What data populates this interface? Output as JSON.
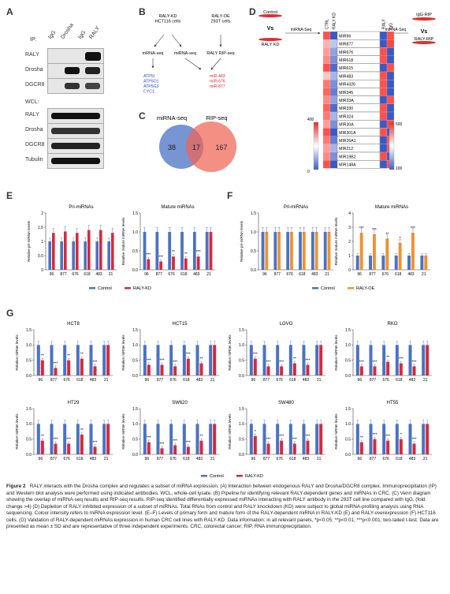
{
  "panels": {
    "A": "A",
    "B": "B",
    "C": "C",
    "D": "D",
    "E": "E",
    "F": "F",
    "G": "G"
  },
  "panelA": {
    "ip_label": "IP:",
    "ip_lanes": [
      "IgG",
      "Drosha",
      "IgG",
      "RALY"
    ],
    "ip_rows": [
      "RALY",
      "Drosha",
      "DGCR8"
    ],
    "wcl_label": "WCL:",
    "wcl_rows": [
      "RALY",
      "Drosha",
      "DGCR8",
      "Tubulin"
    ]
  },
  "panelB": {
    "left_top": "RALY-KD\nHCT116 cells",
    "right_top": "RALY-OE\n293T cells",
    "mrna_seq": "mRNA-seq",
    "mirna_seq": "miRNA-seq",
    "rip_seq": "RALY RIP-seq",
    "genes": [
      "ATP5I",
      "ATP5O1",
      "ATP5G3",
      "CYC1"
    ],
    "mirs": [
      "miR-483",
      "miR-676",
      "miR-877"
    ],
    "gene_color": "#2b4fa8",
    "mir_color": "#d6273a"
  },
  "panelC": {
    "left_label": "miRNA-seq",
    "right_label": "RIP-seq",
    "left_only": "38",
    "overlap": "17",
    "right_only": "167"
  },
  "panelD": {
    "left_box_top": "Control",
    "vs": "Vs",
    "left_box_bottom": "RALY KD",
    "left_arrow": "miRNA-Seq",
    "right_box_top": "IgG-RIP",
    "right_box_bottom": "RALY-RIP",
    "right_arrow": "miRNA-Seq",
    "col_left": [
      "CTRL",
      "RALY KD"
    ],
    "col_right": [
      "RALY",
      "IgG"
    ],
    "mirs": [
      "MIR96",
      "MIR877",
      "MIR676",
      "MIR618",
      "MIR615",
      "MIR483",
      "MIR4326",
      "MIR345",
      "MIR33A",
      "MIR330",
      "MIR324",
      "MIR30A",
      "MIR301A",
      "MIR26A1",
      "MIR212",
      "MIR19B2",
      "MIR148A"
    ],
    "left_scale": [
      "400",
      "0"
    ],
    "right_scale": [
      "500",
      "100"
    ]
  },
  "panelE": {
    "categories": [
      "96",
      "877",
      "676",
      "618",
      "483",
      "21"
    ],
    "pri": {
      "title": "Pri-miRNAs",
      "ylabel": "Relative pri-miRNA levels",
      "control": [
        1.0,
        1.0,
        1.0,
        1.0,
        1.0,
        1.0
      ],
      "treat": [
        1.3,
        1.35,
        1.3,
        1.4,
        1.4,
        1.3
      ],
      "stars": [
        "",
        "",
        "",
        "",
        "",
        ""
      ]
    },
    "mature": {
      "title": "Mature miRNAs",
      "ylabel": "Relative mature miRNA levels",
      "control": [
        1.0,
        1.0,
        1.0,
        1.0,
        1.0,
        1.0
      ],
      "treat": [
        0.28,
        0.22,
        0.35,
        0.3,
        0.35,
        1.0
      ],
      "stars": [
        "***",
        "***",
        "**",
        "**",
        "***",
        ""
      ]
    },
    "legend": [
      "Control",
      "RALY-KD"
    ]
  },
  "panelF": {
    "categories": [
      "96",
      "877",
      "676",
      "618",
      "483",
      "21"
    ],
    "pri": {
      "title": "Pri-miRNAs",
      "ylabel": "Relative pri-miRNA levels",
      "control": [
        1.0,
        1.0,
        1.0,
        1.0,
        1.0,
        1.0
      ],
      "treat": [
        1.0,
        1.0,
        1.0,
        1.0,
        1.0,
        1.0
      ],
      "stars": [
        "",
        "",
        "",
        "",
        "",
        ""
      ]
    },
    "mature": {
      "title": "Mature miRNAs",
      "ylabel": "Relative mature miRNA levels",
      "control": [
        1.0,
        1.0,
        1.0,
        1.0,
        1.0,
        1.0
      ],
      "treat": [
        2.6,
        2.5,
        2.2,
        1.9,
        2.6,
        1.0
      ],
      "stars": [
        "***",
        "***",
        "**",
        "*",
        "***",
        ""
      ]
    },
    "legend": [
      "Control",
      "RALY-OE"
    ]
  },
  "panelG": {
    "categories": [
      "96",
      "877",
      "676",
      "618",
      "483",
      "21"
    ],
    "ylabel": "Relative miRNA levels",
    "lines": [
      {
        "title": "HCT8",
        "treat": [
          0.5,
          0.25,
          0.5,
          0.55,
          0.3,
          1.0
        ],
        "stars": [
          "**",
          "***",
          "**",
          "**",
          "***",
          ""
        ]
      },
      {
        "title": "HCT15",
        "treat": [
          0.35,
          0.35,
          0.3,
          0.55,
          0.4,
          1.0
        ],
        "stars": [
          "***",
          "***",
          "***",
          "***",
          "**",
          ""
        ]
      },
      {
        "title": "LOVO",
        "treat": [
          0.55,
          0.3,
          0.3,
          0.4,
          0.35,
          1.0
        ],
        "stars": [
          "***",
          "***",
          "***",
          "**",
          "***",
          ""
        ]
      },
      {
        "title": "RKO",
        "treat": [
          0.3,
          0.3,
          0.45,
          0.4,
          0.3,
          1.0
        ],
        "stars": [
          "***",
          "***",
          "**",
          "***",
          "***",
          ""
        ]
      },
      {
        "title": "HT29",
        "treat": [
          0.45,
          0.35,
          0.35,
          0.65,
          0.25,
          1.0
        ],
        "stars": [
          "**",
          "***",
          "***",
          "**",
          "***",
          ""
        ]
      },
      {
        "title": "SW620",
        "treat": [
          0.4,
          0.2,
          0.3,
          0.25,
          0.45,
          1.0
        ],
        "stars": [
          "***",
          "***",
          "***",
          "***",
          "**",
          ""
        ]
      },
      {
        "title": "SW480",
        "treat": [
          0.6,
          0.35,
          0.45,
          0.35,
          0.45,
          1.0
        ],
        "stars": [
          "*",
          "***",
          "***",
          "***",
          "***",
          ""
        ]
      },
      {
        "title": "HT55",
        "treat": [
          0.4,
          0.5,
          0.45,
          0.5,
          0.35,
          1.0
        ],
        "stars": [
          "**",
          "***",
          "***",
          "*",
          "***",
          ""
        ]
      }
    ],
    "legend": [
      "Control",
      "RALY-KD"
    ]
  },
  "colors": {
    "control": "#4a72c4",
    "kd": "#d42a3c",
    "oe": "#f0922f"
  },
  "caption": {
    "head": "Figure 2",
    "text": "RALY interacts with the Drosha complex and regulates a subset of miRNA expression. (A) Interaction between endogenous RALY and Drosha/DGCR8 complex. Immunoprecipitation (IP) and Western blot analysis were performed using indicated antibodies. WCL, whole-cell lysate. (B) Pipeline for identifying relevant RALY-dependent genes and miRNAs in CRC. (C) Venn diagram showing the overlap of miRNA-seq results and RIP-seq results. RIP-seq identified differentially expressed miRNAs interacting with RALY antibody in the 293T cell line compared with IgG. (fold change >4) (D) Depletion of RALY inhibited expression of a subset of miRNAs. Total RNAs from control and RALY knockdown (KD) were subject to global miRNA-profiling analysis using RNA sequencing. Colour intensity refers to miRNA expression level. (E–F) Levels of primary form and mature form of the RALY-dependent miRNA in RALY-KD (E) and RALY-overexpression (F) HCT116 cells. (G) Validation of RALY-dependent miRNAs expression in human CRC cell lines with RALY-KD. Data information: in all relevant panels, *p<0.05; **p<0.01; ***p<0.001; two-tailed t-test. Data are presented as mean ± SD and are representative of three independent experiments. CRC, colorectal cancer; RIP, RNA immunoprecipitation."
  }
}
